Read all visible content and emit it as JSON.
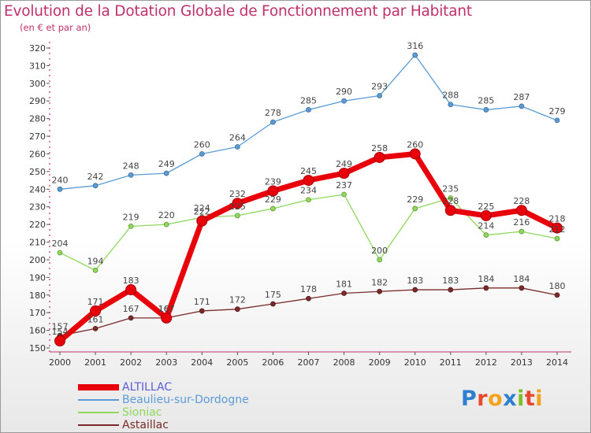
{
  "chart_data": {
    "type": "line",
    "title": "Evolution de la Dotation Globale de Fonctionnement par Habitant",
    "subtitle": "(en € et par an)",
    "xlabel": "",
    "ylabel": "",
    "ylim": [
      150,
      320
    ],
    "ytick_step": 10,
    "grid": false,
    "legend_position": "bottom-left",
    "categories": [
      "2000",
      "2001",
      "2002",
      "2003",
      "2004",
      "2005",
      "2006",
      "2007",
      "2008",
      "2009",
      "2010",
      "2011",
      "2012",
      "2013",
      "2014"
    ],
    "series": [
      {
        "name": "ALTILLAC",
        "color": "#e8000b",
        "values": [
          154,
          171,
          183,
          167,
          222,
          232,
          239,
          245,
          249,
          258,
          260,
          228,
          225,
          228,
          218
        ]
      },
      {
        "name": "Beaulieu-sur-Dordogne",
        "color": "#5b9bd5",
        "values": [
          240,
          242,
          248,
          249,
          260,
          264,
          278,
          285,
          290,
          293,
          316,
          288,
          285,
          287,
          279
        ]
      },
      {
        "name": "Sioniac",
        "color": "#8fd85c",
        "values": [
          204,
          194,
          219,
          220,
          224,
          225,
          229,
          234,
          237,
          200,
          229,
          235,
          214,
          216,
          212
        ]
      },
      {
        "name": "Astaillac",
        "color": "#7a2a2a",
        "values": [
          157,
          161,
          167,
          167,
          171,
          172,
          175,
          178,
          181,
          182,
          183,
          183,
          184,
          184,
          180
        ]
      }
    ]
  },
  "logo": {
    "letters": [
      "P",
      "r",
      "o",
      "x",
      "i",
      "t",
      "i"
    ],
    "colors": [
      "#2f7fd0",
      "#e8492c",
      "#f2a21b",
      "#2f7fd0",
      "#7bbf2a",
      "#e8492c",
      "#f2a21b"
    ]
  }
}
